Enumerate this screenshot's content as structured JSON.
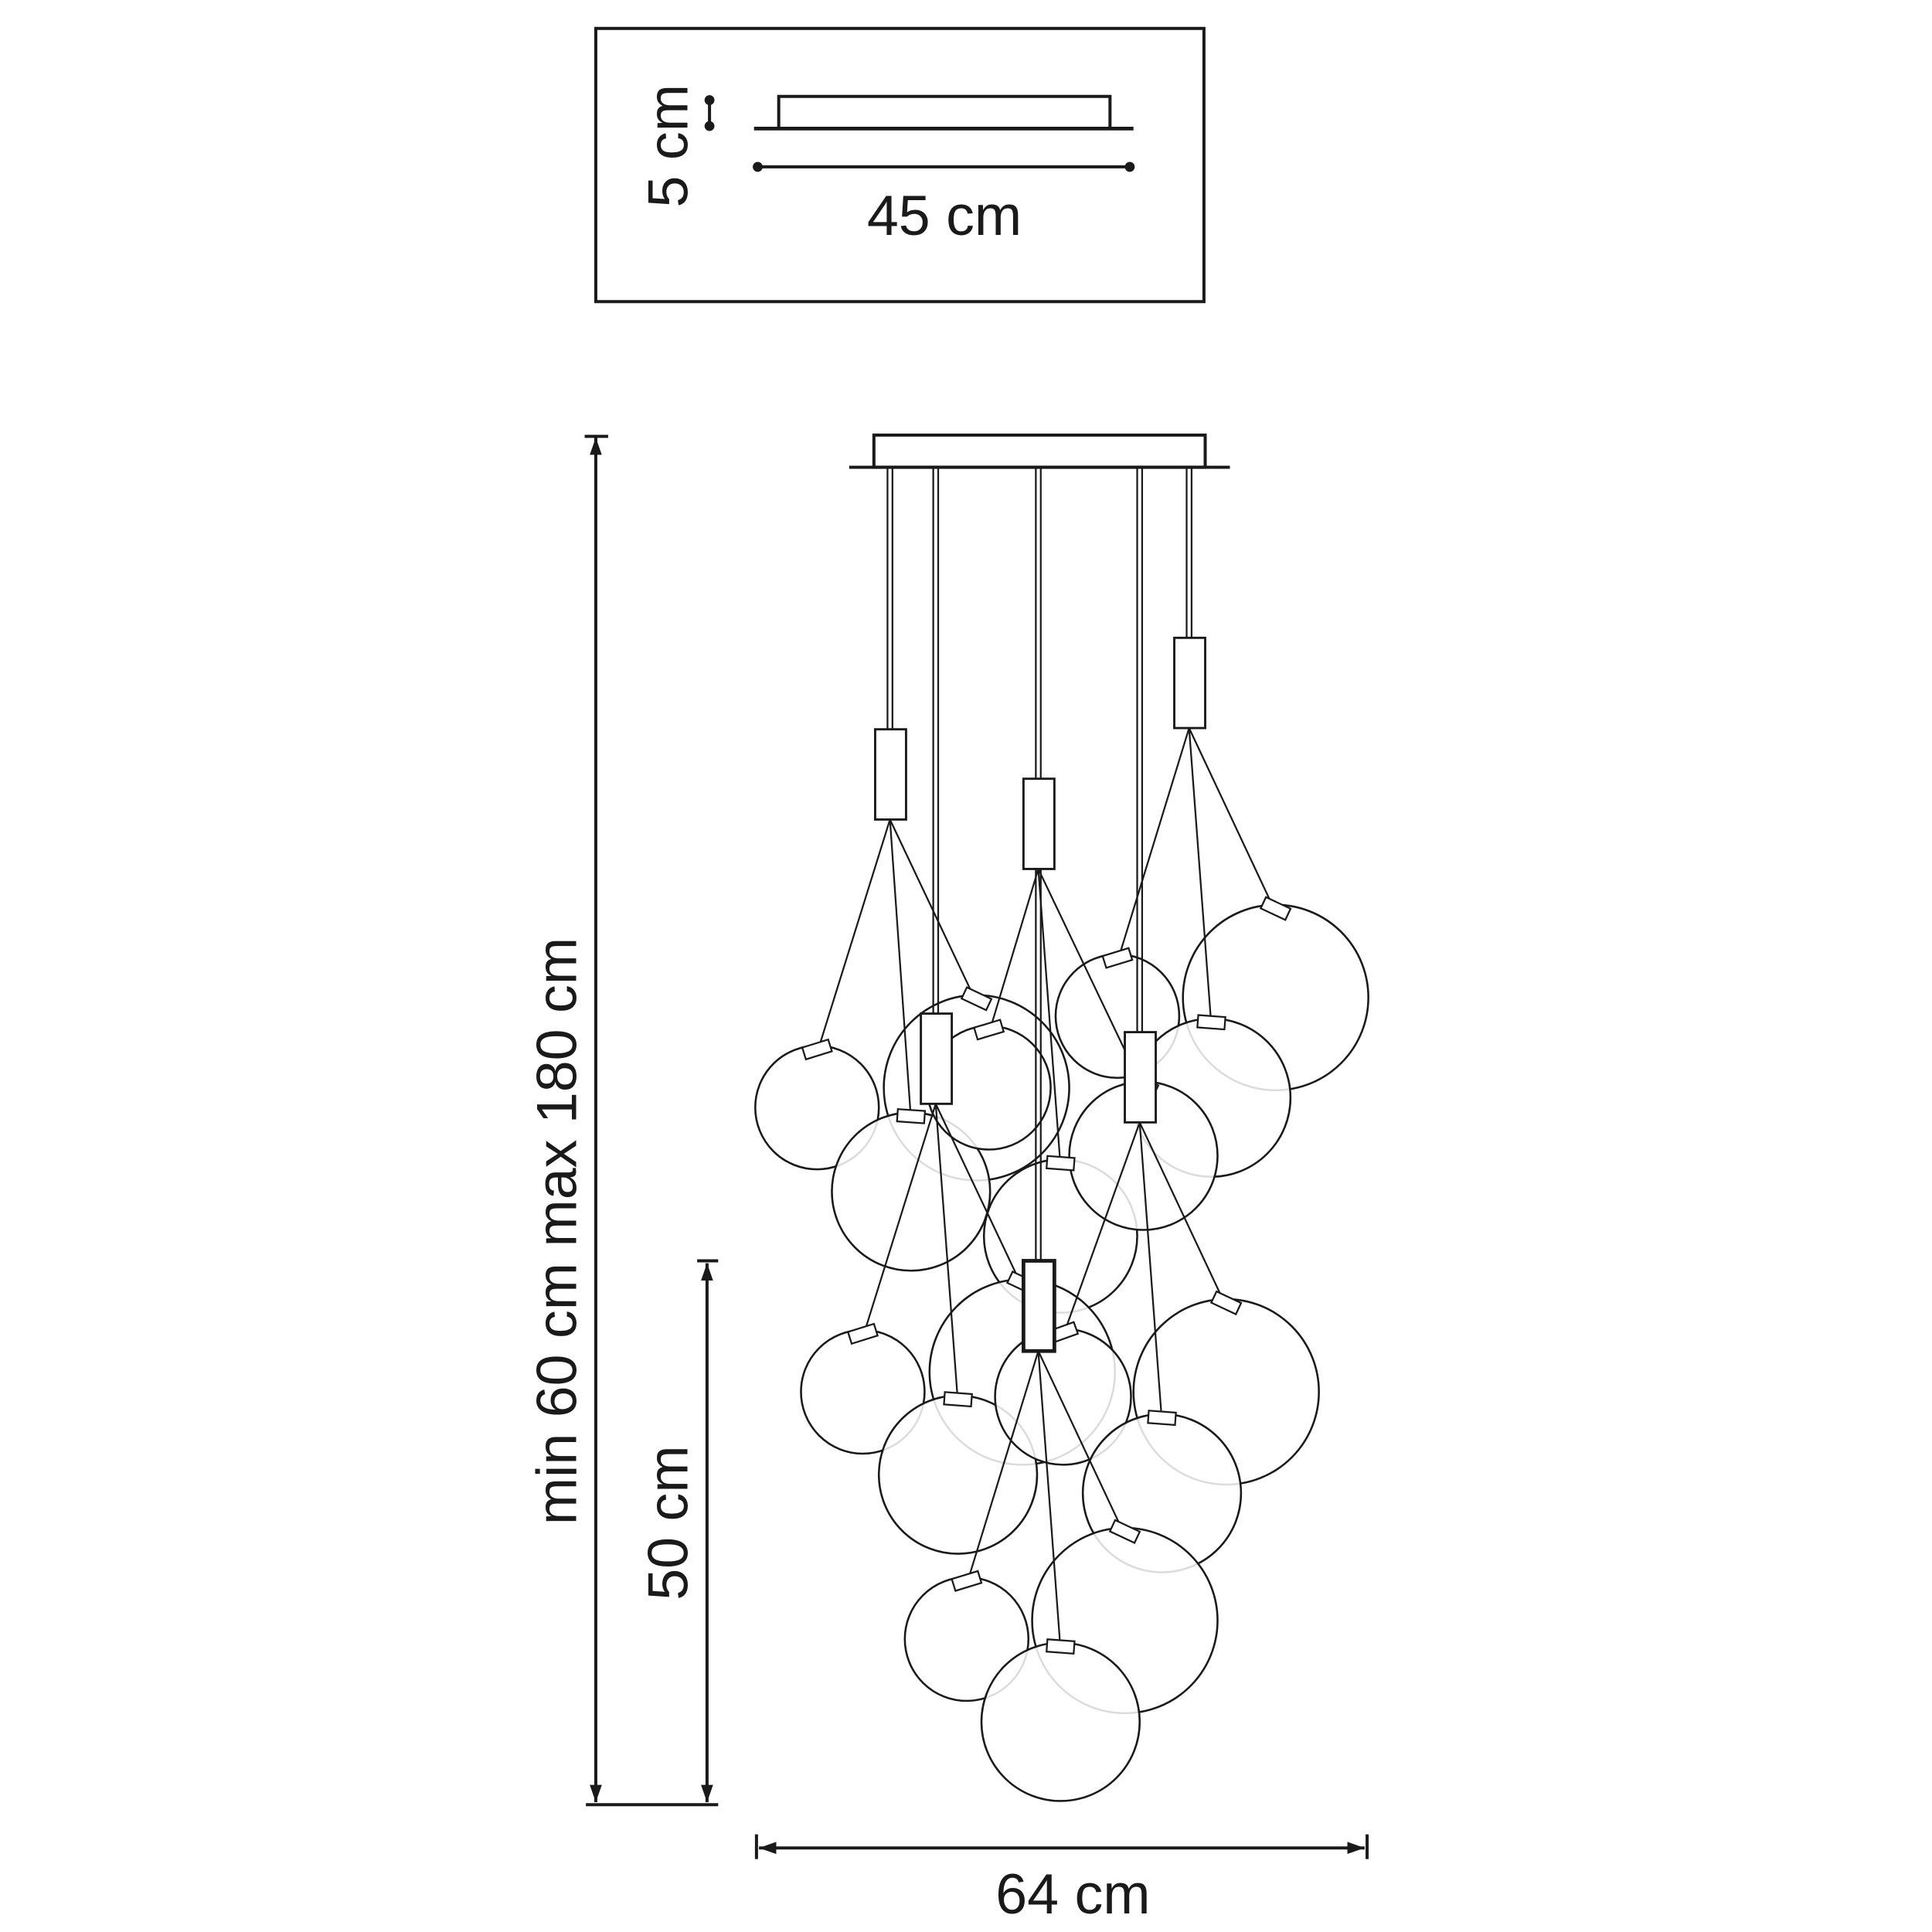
{
  "top_view": {
    "height_label": "5 cm",
    "width_label": "45 cm"
  },
  "front_view": {
    "total_height_label": "min 60 cm max 180 cm",
    "cluster_height_label": "50 cm",
    "width_label": "64 cm"
  },
  "colors": {
    "line": "#1a1a1a",
    "background": "#ffffff"
  }
}
